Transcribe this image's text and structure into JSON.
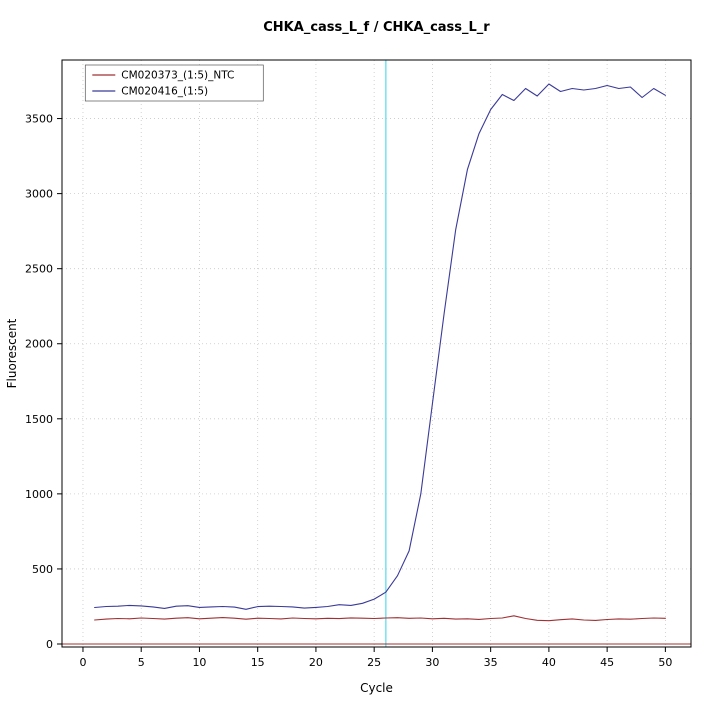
{
  "chart_data": {
    "type": "line",
    "title": "CHKA_cass_L_f / CHKA_cass_L_r",
    "xlabel": "Cycle",
    "ylabel": "Fluorescent",
    "xlim": [
      -1.8,
      52.2
    ],
    "ylim": [
      -20,
      3890
    ],
    "xticks": [
      0,
      5,
      10,
      15,
      20,
      25,
      30,
      35,
      40,
      45,
      50
    ],
    "yticks": [
      0,
      500,
      1000,
      1500,
      2000,
      2500,
      3000,
      3500
    ],
    "grid": true,
    "legend_position": "top-left",
    "threshold_line": {
      "x": 26,
      "color": "#7FE4F2"
    },
    "baseline": {
      "y": 0,
      "color": "#A03033"
    },
    "x_start": 1,
    "series": [
      {
        "name": "CM020373_(1:5)_NTC",
        "color": "#A03033",
        "values": [
          160,
          166,
          170,
          168,
          173,
          170,
          166,
          172,
          175,
          168,
          172,
          176,
          172,
          165,
          172,
          170,
          167,
          173,
          170,
          168,
          171,
          169,
          174,
          172,
          170,
          173,
          175,
          171,
          173,
          168,
          171,
          166,
          168,
          164,
          170,
          173,
          188,
          170,
          158,
          155,
          162,
          167,
          160,
          157,
          163,
          167,
          165,
          170,
          173,
          171
        ]
      },
      {
        "name": "CM020416_(1:5)",
        "color": "#3A3A99",
        "values": [
          243,
          250,
          252,
          257,
          254,
          247,
          237,
          252,
          255,
          244,
          247,
          250,
          246,
          231,
          249,
          252,
          250,
          247,
          239,
          244,
          250,
          262,
          257,
          271,
          299,
          345,
          455,
          620,
          1000,
          1600,
          2200,
          2760,
          3160,
          3400,
          3560,
          3660,
          3620,
          3700,
          3650,
          3730,
          3680,
          3700,
          3690,
          3700,
          3720,
          3700,
          3710,
          3640,
          3700,
          3655
        ]
      }
    ]
  }
}
